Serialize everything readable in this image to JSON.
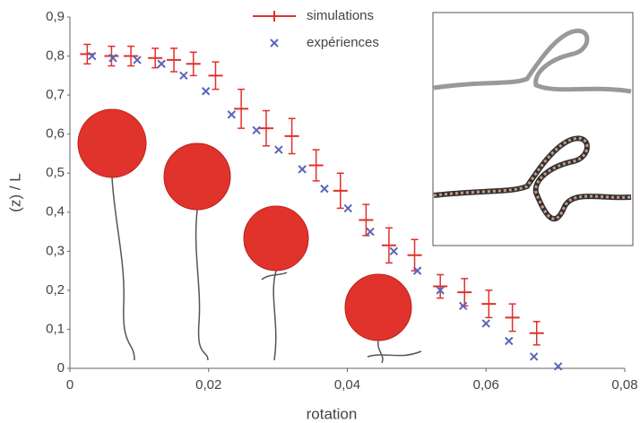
{
  "chart_data": {
    "type": "scatter",
    "xlabel": "rotation",
    "ylabel": "(z) / L",
    "xlim": [
      0,
      0.08
    ],
    "ylim": [
      0,
      0.9
    ],
    "xticks": [
      0,
      {
        "value": 0.02,
        "label": "0,02"
      },
      {
        "value": 0.04,
        "label": "0,04"
      },
      {
        "value": 0.06,
        "label": "0,06"
      },
      {
        "value": 0.08,
        "label": "0,08"
      }
    ],
    "yticks": [
      0,
      {
        "value": 0.1,
        "label": "0,1"
      },
      {
        "value": 0.2,
        "label": "0,2"
      },
      {
        "value": 0.3,
        "label": "0,3"
      },
      {
        "value": 0.4,
        "label": "0,4"
      },
      {
        "value": 0.5,
        "label": "0,5"
      },
      {
        "value": 0.6,
        "label": "0,6"
      },
      {
        "value": 0.7,
        "label": "0,7"
      },
      {
        "value": 0.8,
        "label": "0,8"
      },
      {
        "value": 0.9,
        "label": "0,9"
      }
    ],
    "series": [
      {
        "name": "simulations",
        "color": "#e0302c",
        "marker": "errorbar",
        "x": [
          0.0025,
          0.006,
          0.0088,
          0.0123,
          0.015,
          0.0178,
          0.021,
          0.0247,
          0.0283,
          0.032,
          0.0355,
          0.039,
          0.0427,
          0.046,
          0.0497,
          0.0534,
          0.0569,
          0.0604,
          0.0638,
          0.0673
        ],
        "values": [
          0.805,
          0.8,
          0.8,
          0.795,
          0.79,
          0.78,
          0.75,
          0.665,
          0.615,
          0.595,
          0.52,
          0.455,
          0.38,
          0.315,
          0.29,
          0.21,
          0.195,
          0.165,
          0.13,
          0.09
        ],
        "errors": [
          0.025,
          0.025,
          0.025,
          0.025,
          0.03,
          0.03,
          0.035,
          0.05,
          0.045,
          0.045,
          0.04,
          0.045,
          0.04,
          0.045,
          0.04,
          0.03,
          0.035,
          0.035,
          0.035,
          0.03
        ]
      },
      {
        "name": "expériences",
        "color": "#5a66b8",
        "marker": "cross",
        "x": [
          0.0032,
          0.0062,
          0.0097,
          0.0132,
          0.0164,
          0.0196,
          0.0233,
          0.0269,
          0.0301,
          0.0335,
          0.0367,
          0.0401,
          0.0433,
          0.0467,
          0.0501,
          0.0534,
          0.0567,
          0.06,
          0.0633,
          0.0669,
          0.0704
        ],
        "values": [
          0.8,
          0.795,
          0.79,
          0.78,
          0.75,
          0.71,
          0.65,
          0.61,
          0.56,
          0.51,
          0.46,
          0.41,
          0.35,
          0.3,
          0.25,
          0.2,
          0.16,
          0.115,
          0.07,
          0.03,
          0.005
        ]
      }
    ]
  }
}
